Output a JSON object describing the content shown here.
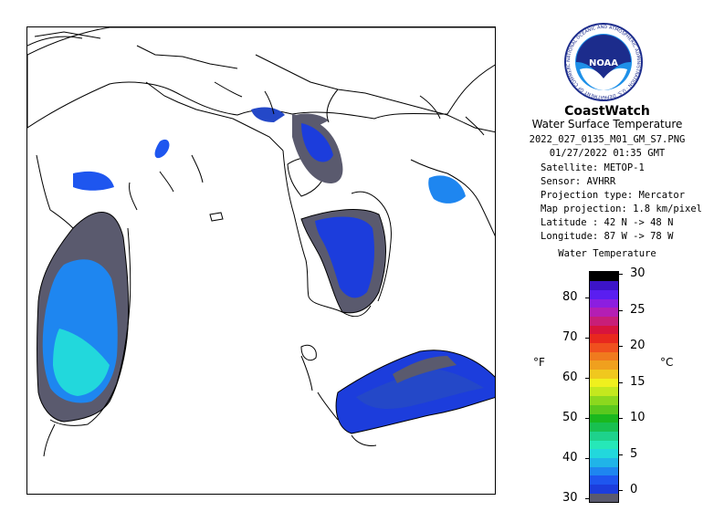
{
  "header": {
    "title": "CoastWatch",
    "subtitle": "Water Surface Temperature",
    "filename": "2022_027_0135_M01_GM_S7.PNG",
    "datetime": "01/27/2022   01:35 GMT"
  },
  "metadata": [
    {
      "label": "Satellite: METOP-1"
    },
    {
      "label": "Sensor: AVHRR"
    },
    {
      "label": "Projection type:  Mercator"
    },
    {
      "label": "Map projection: 1.8 km/pixel"
    },
    {
      "label": "Latitude : 42 N -> 48 N"
    },
    {
      "label": "Longitude: 87 W -> 78 W"
    }
  ],
  "legend": {
    "title": "Water Temperature",
    "fahrenheit_unit": "°F",
    "celsius_unit": "°C",
    "fahrenheit_ticks": [
      "30",
      "40",
      "50",
      "60",
      "70",
      "80"
    ],
    "celsius_ticks": [
      "0",
      "5",
      "10",
      "15",
      "20",
      "25",
      "30"
    ],
    "colors": [
      "#5a5a6e",
      "#1c3ddc",
      "#1e56ef",
      "#1e86f0",
      "#20b4e8",
      "#22d8dc",
      "#26e8b8",
      "#1ed28c",
      "#18c050",
      "#1ab81e",
      "#5ac81e",
      "#8cd81e",
      "#c4e81e",
      "#f0f01e",
      "#f0c81e",
      "#f0a01e",
      "#f07a1e",
      "#f0501e",
      "#e8281e",
      "#d8143c",
      "#c81e78",
      "#b41eb4",
      "#8c1ee0",
      "#5a1ef0",
      "#3c14c8",
      "#000000"
    ]
  },
  "logo": {
    "text": "NOAA",
    "ring_text": "NATIONAL OCEANIC AND ATMOSPHERIC ADMINISTRATION · U.S. DEPARTMENT OF COMMERCE"
  }
}
